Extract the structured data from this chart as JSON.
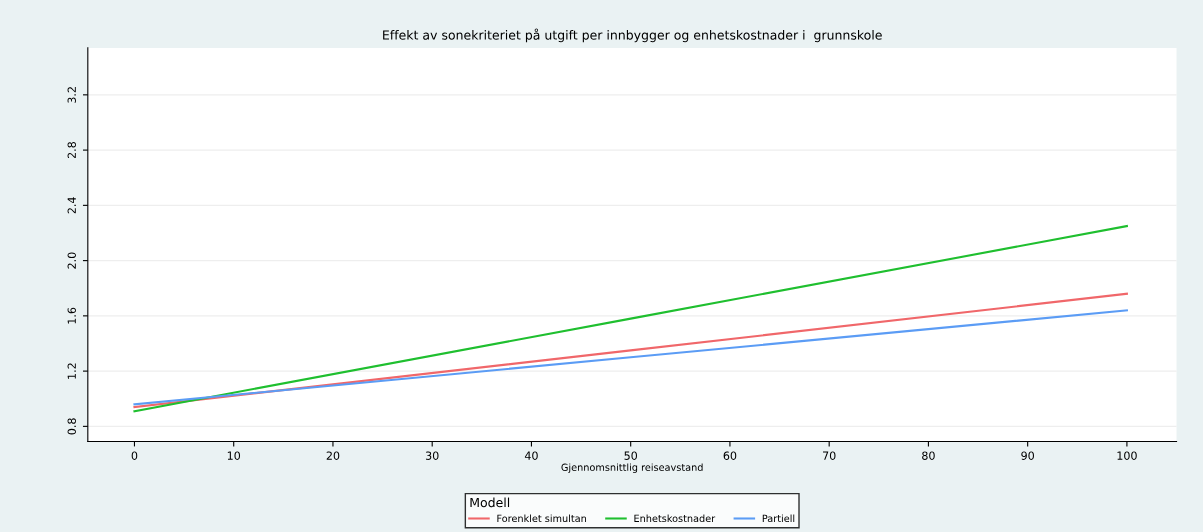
{
  "chart_data": {
    "type": "line",
    "title": "Effekt av sonekriteriet på utgift per innbygger og enhetskostnader i  grunnskole",
    "xlabel": "Gjennomsnittlig reiseavstand",
    "legend_title": "Modell",
    "x": [
      0,
      50,
      100
    ],
    "series": [
      {
        "name": "Forenklet simultan",
        "color": "#f0676a",
        "values": [
          0.94,
          1.35,
          1.76
        ]
      },
      {
        "name": "Enhetskostnader",
        "color": "#1fbf2f",
        "values": [
          0.91,
          1.58,
          2.25
        ]
      },
      {
        "name": "Partiell",
        "color": "#5b9cf5",
        "values": [
          0.96,
          1.3,
          1.64
        ]
      }
    ],
    "xlim": [
      -4.7,
      105
    ],
    "xticks": [
      0,
      10,
      20,
      30,
      40,
      50,
      60,
      70,
      80,
      90,
      100
    ],
    "ylim": [
      0.69,
      3.54
    ],
    "yticks": [
      0.8,
      1.2,
      1.6,
      {
        "value": 2,
        "label": "2.0"
      },
      2.4,
      2.8,
      3.2
    ],
    "grid": "y",
    "legend": "bottom",
    "marker": "none",
    "line_style": "solid"
  }
}
